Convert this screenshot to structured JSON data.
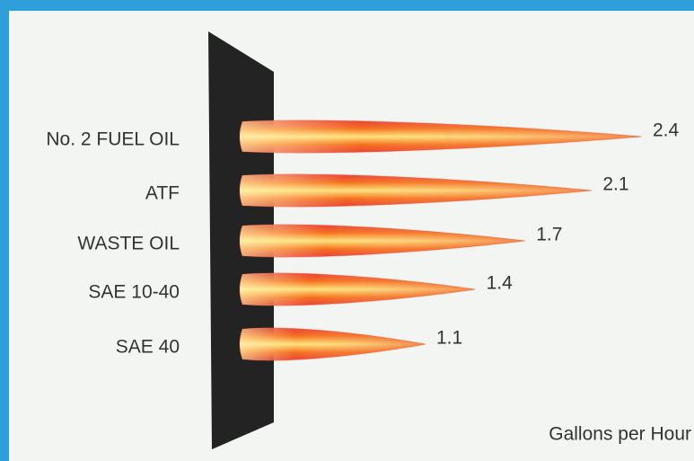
{
  "chart_data": {
    "type": "bar",
    "orientation": "horizontal",
    "categories": [
      "No. 2 FUEL OIL",
      "ATF",
      "WASTE OIL",
      "SAE 10-40",
      "SAE 40"
    ],
    "values": [
      2.4,
      2.1,
      1.7,
      1.4,
      1.1
    ],
    "color": "#f0441c",
    "x_label": "Gallons per Hour"
  }
}
